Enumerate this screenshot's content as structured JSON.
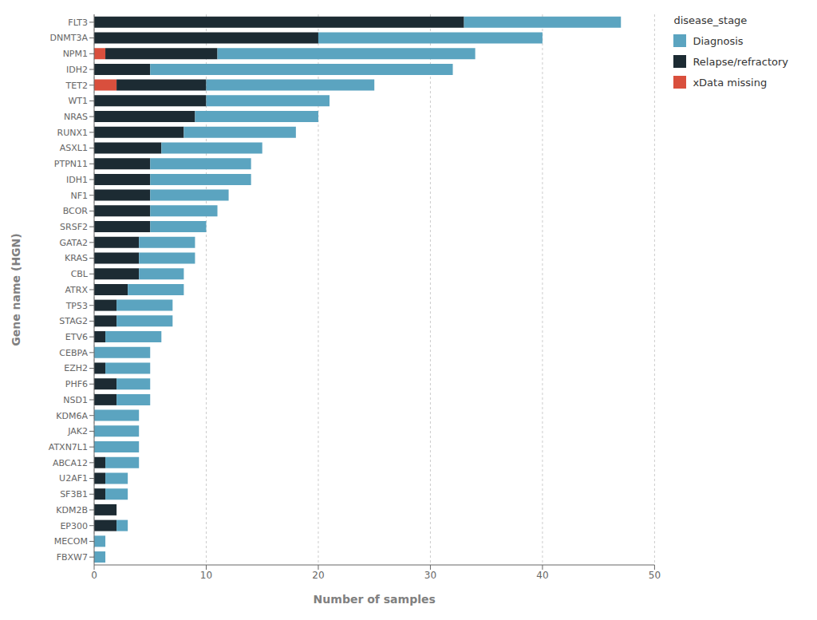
{
  "chart_data": {
    "type": "bar",
    "orientation": "horizontal",
    "stacked": true,
    "grid": true,
    "legend": "right",
    "legend_title": "disease_stage",
    "xlabel": "Number of samples",
    "ylabel": "Gene name (HGN)",
    "categories": [
      "FLT3",
      "DNMT3A",
      "NPM1",
      "IDH2",
      "TET2",
      "WT1",
      "NRAS",
      "RUNX1",
      "ASXL1",
      "PTPN11",
      "IDH1",
      "NF1",
      "BCOR",
      "SRSF2",
      "GATA2",
      "KRAS",
      "CBL",
      "ATRX",
      "TP53",
      "STAG2",
      "ETV6",
      "CEBPA",
      "EZH2",
      "PHF6",
      "NSD1",
      "KDM6A",
      "JAK2",
      "ATXN7L1",
      "ABCA12",
      "U2AF1",
      "SF3B1",
      "KDM2B",
      "EP300",
      "MECOM",
      "FBXW7"
    ],
    "series": [
      {
        "name": "xData missing",
        "color": "#d94f3d",
        "values": [
          0,
          0,
          1,
          0,
          2,
          0,
          0,
          0,
          0,
          0,
          0,
          0,
          0,
          0,
          0,
          0,
          0,
          0,
          0,
          0,
          0,
          0,
          0,
          0,
          0,
          0,
          0,
          0,
          0,
          0,
          0,
          0,
          0,
          0,
          0
        ]
      },
      {
        "name": "Relapse/refractory",
        "color": "#1c2b33",
        "values": [
          33,
          20,
          10,
          5,
          8,
          10,
          9,
          8,
          6,
          5,
          5,
          5,
          5,
          5,
          4,
          4,
          4,
          3,
          2,
          2,
          1,
          0,
          1,
          2,
          2,
          0,
          0,
          0,
          1,
          1,
          1,
          2,
          2,
          0,
          0
        ]
      },
      {
        "name": "Diagnosis",
        "color": "#5ba4c0",
        "values": [
          14,
          20,
          23,
          27,
          15,
          11,
          11,
          10,
          9,
          9,
          9,
          7,
          6,
          5,
          5,
          5,
          4,
          5,
          5,
          5,
          5,
          5,
          4,
          3,
          3,
          4,
          4,
          4,
          3,
          2,
          2,
          0,
          1,
          1,
          1
        ]
      }
    ],
    "xlim": [
      0,
      50
    ],
    "xticks": [
      0,
      10,
      20,
      30,
      40,
      50
    ]
  }
}
